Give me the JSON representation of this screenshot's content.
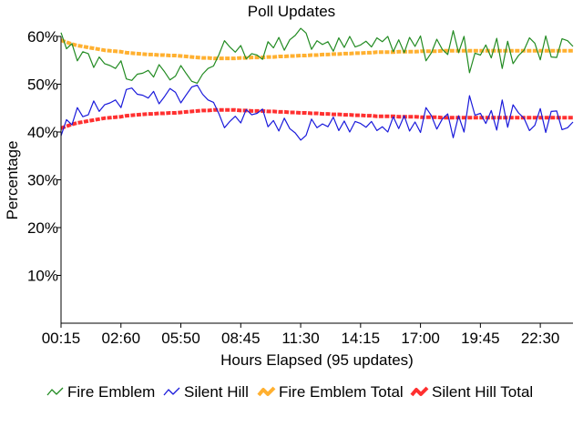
{
  "chart_data": {
    "type": "line",
    "title": "Poll Updates",
    "xlabel": "Hours Elapsed (95 updates)",
    "ylabel": "Percentage",
    "ylim": [
      0,
      0.6
    ],
    "xlim": [
      0,
      94
    ],
    "yticks": [
      {
        "value": 0.1,
        "label": "10%"
      },
      {
        "value": 0.2,
        "label": "20%"
      },
      {
        "value": 0.3,
        "label": "30%"
      },
      {
        "value": 0.4,
        "label": "40%"
      },
      {
        "value": 0.5,
        "label": "50%"
      },
      {
        "value": 0.6,
        "label": "60%"
      }
    ],
    "xticks": [
      {
        "index": 0,
        "label": "00:15"
      },
      {
        "index": 11,
        "label": "02:60"
      },
      {
        "index": 22,
        "label": "05:50"
      },
      {
        "index": 33,
        "label": "08:45"
      },
      {
        "index": 44,
        "label": "11:30"
      },
      {
        "index": 55,
        "label": "14:15"
      },
      {
        "index": 66,
        "label": "17:00"
      },
      {
        "index": 77,
        "label": "19:45"
      },
      {
        "index": 88,
        "label": "22:30"
      }
    ],
    "legend_position": "bottom",
    "series": [
      {
        "name": "Fire Emblem",
        "color": "#228B22",
        "style": "thin",
        "values": [
          0.608,
          0.574,
          0.585,
          0.549,
          0.568,
          0.564,
          0.535,
          0.557,
          0.543,
          0.539,
          0.533,
          0.549,
          0.511,
          0.508,
          0.521,
          0.523,
          0.529,
          0.515,
          0.541,
          0.526,
          0.509,
          0.517,
          0.539,
          0.522,
          0.506,
          0.502,
          0.521,
          0.533,
          0.538,
          0.562,
          0.591,
          0.578,
          0.567,
          0.581,
          0.553,
          0.564,
          0.561,
          0.552,
          0.589,
          0.576,
          0.598,
          0.571,
          0.593,
          0.602,
          0.617,
          0.607,
          0.573,
          0.591,
          0.583,
          0.589,
          0.569,
          0.597,
          0.577,
          0.6,
          0.578,
          0.582,
          0.59,
          0.578,
          0.597,
          0.589,
          0.6,
          0.568,
          0.593,
          0.566,
          0.598,
          0.579,
          0.601,
          0.549,
          0.566,
          0.594,
          0.573,
          0.562,
          0.612,
          0.566,
          0.6,
          0.524,
          0.565,
          0.561,
          0.582,
          0.555,
          0.596,
          0.533,
          0.59,
          0.543,
          0.56,
          0.571,
          0.597,
          0.586,
          0.551,
          0.601,
          0.557,
          0.556,
          0.595,
          0.591,
          0.579
        ]
      },
      {
        "name": "Silent Hill",
        "color": "#1a1adb",
        "style": "thin",
        "values": [
          0.392,
          0.426,
          0.415,
          0.451,
          0.432,
          0.436,
          0.465,
          0.443,
          0.457,
          0.461,
          0.467,
          0.451,
          0.489,
          0.492,
          0.479,
          0.477,
          0.471,
          0.485,
          0.459,
          0.474,
          0.491,
          0.483,
          0.461,
          0.478,
          0.494,
          0.498,
          0.479,
          0.467,
          0.462,
          0.438,
          0.409,
          0.422,
          0.433,
          0.419,
          0.447,
          0.436,
          0.439,
          0.448,
          0.411,
          0.424,
          0.402,
          0.429,
          0.407,
          0.398,
          0.383,
          0.393,
          0.427,
          0.409,
          0.417,
          0.411,
          0.431,
          0.403,
          0.423,
          0.4,
          0.422,
          0.418,
          0.41,
          0.422,
          0.403,
          0.411,
          0.4,
          0.432,
          0.407,
          0.434,
          0.402,
          0.421,
          0.399,
          0.451,
          0.434,
          0.406,
          0.427,
          0.438,
          0.388,
          0.434,
          0.4,
          0.476,
          0.435,
          0.439,
          0.418,
          0.445,
          0.404,
          0.467,
          0.41,
          0.457,
          0.44,
          0.429,
          0.403,
          0.414,
          0.449,
          0.399,
          0.443,
          0.444,
          0.405,
          0.409,
          0.421
        ]
      },
      {
        "name": "Fire Emblem Total",
        "color": "#FFB030",
        "style": "thick",
        "values": [
          0.592,
          0.588,
          0.584,
          0.581,
          0.579,
          0.577,
          0.575,
          0.573,
          0.571,
          0.57,
          0.569,
          0.568,
          0.566,
          0.565,
          0.564,
          0.563,
          0.562,
          0.562,
          0.561,
          0.561,
          0.56,
          0.56,
          0.559,
          0.558,
          0.557,
          0.556,
          0.555,
          0.555,
          0.554,
          0.554,
          0.554,
          0.554,
          0.554,
          0.555,
          0.555,
          0.556,
          0.556,
          0.556,
          0.557,
          0.557,
          0.558,
          0.558,
          0.559,
          0.559,
          0.56,
          0.56,
          0.561,
          0.561,
          0.562,
          0.562,
          0.563,
          0.563,
          0.564,
          0.564,
          0.565,
          0.565,
          0.566,
          0.566,
          0.567,
          0.567,
          0.567,
          0.567,
          0.568,
          0.568,
          0.568,
          0.568,
          0.569,
          0.569,
          0.569,
          0.569,
          0.57,
          0.57,
          0.57,
          0.57,
          0.57,
          0.57,
          0.57,
          0.57,
          0.57,
          0.57,
          0.57,
          0.57,
          0.57,
          0.57,
          0.57,
          0.57,
          0.57,
          0.57,
          0.57,
          0.57,
          0.57,
          0.57,
          0.57,
          0.57,
          0.57
        ]
      },
      {
        "name": "Silent Hill Total",
        "color": "#FF3030",
        "style": "thick",
        "values": [
          0.408,
          0.412,
          0.416,
          0.419,
          0.421,
          0.423,
          0.425,
          0.427,
          0.429,
          0.43,
          0.431,
          0.432,
          0.434,
          0.435,
          0.436,
          0.437,
          0.438,
          0.438,
          0.439,
          0.439,
          0.44,
          0.44,
          0.441,
          0.442,
          0.443,
          0.444,
          0.445,
          0.445,
          0.446,
          0.446,
          0.446,
          0.446,
          0.446,
          0.445,
          0.445,
          0.444,
          0.444,
          0.444,
          0.443,
          0.443,
          0.442,
          0.442,
          0.441,
          0.441,
          0.44,
          0.44,
          0.439,
          0.439,
          0.438,
          0.438,
          0.437,
          0.437,
          0.436,
          0.436,
          0.435,
          0.435,
          0.434,
          0.434,
          0.433,
          0.433,
          0.433,
          0.433,
          0.432,
          0.432,
          0.432,
          0.432,
          0.431,
          0.431,
          0.431,
          0.431,
          0.43,
          0.43,
          0.43,
          0.43,
          0.43,
          0.43,
          0.43,
          0.43,
          0.43,
          0.43,
          0.43,
          0.43,
          0.43,
          0.43,
          0.43,
          0.43,
          0.43,
          0.43,
          0.43,
          0.43,
          0.43,
          0.43,
          0.43,
          0.43,
          0.43
        ]
      }
    ]
  }
}
